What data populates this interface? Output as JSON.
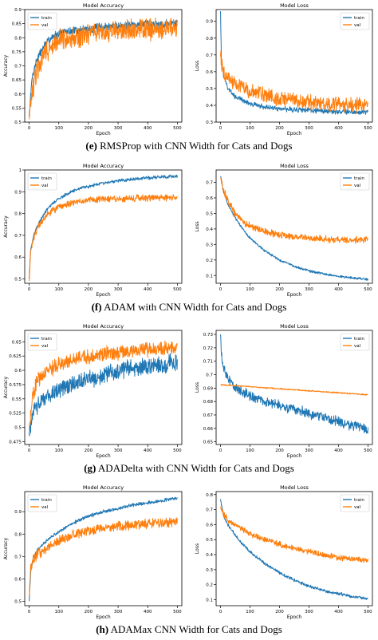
{
  "captions": [
    {
      "letter": "(e)",
      "text": " RMSProp with CNN Width for Cats and Dogs"
    },
    {
      "letter": "(f)",
      "text": " ADAM with CNN Width for Cats and Dogs"
    },
    {
      "letter": "(g)",
      "text": " ADADelta with CNN Width for Cats and Dogs"
    },
    {
      "letter": "(h)",
      "text": " ADAMax CNN Width for Cats and Dogs"
    }
  ],
  "colors": {
    "train": "#1f77b4",
    "val": "#ff7f0e"
  },
  "chart_data": [
    {
      "type": "line",
      "title": "Model Accuracy",
      "xlabel": "Epoch",
      "ylabel": "Accuracy",
      "xlim": [
        -15,
        515
      ],
      "ylim": [
        0.5,
        0.9
      ],
      "xticks": [
        0,
        100,
        200,
        300,
        400,
        500
      ],
      "yticks": [
        0.5,
        0.55,
        0.6,
        0.65,
        0.7,
        0.75,
        0.8,
        0.85,
        0.9
      ],
      "legend": "top-left",
      "series": [
        {
          "name": "train",
          "x": [
            0,
            10,
            25,
            50,
            75,
            100,
            150,
            200,
            250,
            300,
            350,
            400,
            450,
            500
          ],
          "values": [
            0.52,
            0.66,
            0.72,
            0.77,
            0.8,
            0.815,
            0.825,
            0.832,
            0.838,
            0.842,
            0.846,
            0.848,
            0.85,
            0.852
          ],
          "noise": 0.012
        },
        {
          "name": "val",
          "x": [
            0,
            10,
            25,
            50,
            75,
            100,
            150,
            200,
            250,
            300,
            350,
            400,
            450,
            500
          ],
          "values": [
            0.51,
            0.6,
            0.68,
            0.74,
            0.77,
            0.79,
            0.8,
            0.81,
            0.82,
            0.825,
            0.83,
            0.83,
            0.835,
            0.835
          ],
          "noise": 0.03
        }
      ]
    },
    {
      "type": "line",
      "title": "Model Loss",
      "xlabel": "Epoch",
      "ylabel": "Loss",
      "xlim": [
        -15,
        515
      ],
      "ylim": [
        0.3,
        0.97
      ],
      "xticks": [
        0,
        100,
        200,
        300,
        400,
        500
      ],
      "yticks": [
        0.3,
        0.4,
        0.5,
        0.6,
        0.7,
        0.8,
        0.9
      ],
      "legend": "top-right",
      "series": [
        {
          "name": "train",
          "x": [
            0,
            3,
            10,
            25,
            50,
            100,
            150,
            200,
            300,
            400,
            500
          ],
          "values": [
            0.96,
            0.66,
            0.58,
            0.5,
            0.45,
            0.41,
            0.39,
            0.38,
            0.37,
            0.362,
            0.36
          ],
          "noise": 0.012
        },
        {
          "name": "val",
          "x": [
            0,
            3,
            10,
            25,
            50,
            100,
            150,
            200,
            300,
            400,
            500
          ],
          "values": [
            0.69,
            0.65,
            0.6,
            0.56,
            0.53,
            0.48,
            0.46,
            0.44,
            0.42,
            0.41,
            0.4
          ],
          "noise": 0.035
        }
      ]
    },
    {
      "type": "line",
      "title": "Model Accuracy",
      "xlabel": "Epoch",
      "ylabel": "Accuracy",
      "xlim": [
        -15,
        515
      ],
      "ylim": [
        0.48,
        1.0
      ],
      "xticks": [
        0,
        100,
        200,
        300,
        400,
        500
      ],
      "yticks": [
        0.5,
        0.6,
        0.7,
        0.8,
        0.9,
        1.0
      ],
      "legend": "top-left",
      "series": [
        {
          "name": "train",
          "x": [
            0,
            5,
            15,
            30,
            50,
            75,
            100,
            150,
            200,
            250,
            300,
            350,
            400,
            450,
            500
          ],
          "values": [
            0.5,
            0.63,
            0.7,
            0.75,
            0.8,
            0.84,
            0.87,
            0.905,
            0.925,
            0.94,
            0.95,
            0.958,
            0.963,
            0.968,
            0.972
          ],
          "noise": 0.006
        },
        {
          "name": "val",
          "x": [
            0,
            5,
            15,
            30,
            50,
            75,
            100,
            150,
            200,
            250,
            300,
            350,
            400,
            450,
            500
          ],
          "values": [
            0.49,
            0.62,
            0.69,
            0.74,
            0.78,
            0.81,
            0.83,
            0.85,
            0.86,
            0.865,
            0.868,
            0.87,
            0.872,
            0.872,
            0.873
          ],
          "noise": 0.012
        }
      ]
    },
    {
      "type": "line",
      "title": "Model Loss",
      "xlabel": "Epoch",
      "ylabel": "Loss",
      "xlim": [
        -15,
        515
      ],
      "ylim": [
        0.05,
        0.78
      ],
      "xticks": [
        0,
        100,
        200,
        300,
        400,
        500
      ],
      "yticks": [
        0.1,
        0.2,
        0.3,
        0.4,
        0.5,
        0.6,
        0.7
      ],
      "legend": "top-right",
      "series": [
        {
          "name": "train",
          "x": [
            0,
            10,
            25,
            50,
            75,
            100,
            150,
            200,
            250,
            300,
            350,
            400,
            450,
            500
          ],
          "values": [
            0.74,
            0.64,
            0.56,
            0.47,
            0.4,
            0.34,
            0.26,
            0.2,
            0.16,
            0.13,
            0.11,
            0.095,
            0.085,
            0.075
          ],
          "noise": 0.006
        },
        {
          "name": "val",
          "x": [
            0,
            10,
            25,
            50,
            75,
            100,
            150,
            200,
            250,
            300,
            350,
            400,
            450,
            500
          ],
          "values": [
            0.73,
            0.65,
            0.58,
            0.5,
            0.45,
            0.42,
            0.38,
            0.36,
            0.35,
            0.34,
            0.335,
            0.33,
            0.33,
            0.33
          ],
          "noise": 0.018
        }
      ]
    },
    {
      "type": "line",
      "title": "Model Accuracy",
      "xlabel": "Epoch",
      "ylabel": "Accuracy",
      "xlim": [
        -15,
        515
      ],
      "ylim": [
        0.47,
        0.67
      ],
      "xticks": [
        0,
        100,
        200,
        300,
        400,
        500
      ],
      "yticks": [
        0.475,
        0.5,
        0.525,
        0.55,
        0.575,
        0.6,
        0.625,
        0.65
      ],
      "legend": "top-left",
      "series": [
        {
          "name": "train",
          "x": [
            0,
            10,
            25,
            50,
            100,
            150,
            200,
            250,
            300,
            350,
            400,
            450,
            500
          ],
          "values": [
            0.49,
            0.52,
            0.535,
            0.55,
            0.565,
            0.575,
            0.585,
            0.592,
            0.598,
            0.603,
            0.607,
            0.61,
            0.613
          ],
          "noise": 0.012
        },
        {
          "name": "val",
          "x": [
            0,
            10,
            25,
            50,
            100,
            150,
            200,
            250,
            300,
            350,
            400,
            450,
            500
          ],
          "values": [
            0.5,
            0.55,
            0.58,
            0.595,
            0.61,
            0.618,
            0.624,
            0.628,
            0.632,
            0.634,
            0.636,
            0.638,
            0.64
          ],
          "noise": 0.01
        }
      ]
    },
    {
      "type": "line",
      "title": "Model Loss",
      "xlabel": "Epoch",
      "ylabel": "Loss",
      "xlim": [
        -15,
        515
      ],
      "ylim": [
        0.648,
        0.733
      ],
      "xticks": [
        0,
        100,
        200,
        300,
        400,
        500
      ],
      "yticks": [
        0.65,
        0.66,
        0.67,
        0.68,
        0.69,
        0.7,
        0.71,
        0.72,
        0.73
      ],
      "legend": "top-right",
      "series": [
        {
          "name": "train",
          "x": [
            0,
            3,
            10,
            25,
            50,
            100,
            150,
            200,
            250,
            300,
            350,
            400,
            450,
            500
          ],
          "values": [
            0.73,
            0.715,
            0.705,
            0.697,
            0.69,
            0.684,
            0.68,
            0.677,
            0.674,
            0.671,
            0.668,
            0.665,
            0.662,
            0.659
          ],
          "noise": 0.003
        },
        {
          "name": "val",
          "x": [
            0,
            100,
            200,
            300,
            400,
            500
          ],
          "values": [
            0.6925,
            0.6911,
            0.6895,
            0.688,
            0.6865,
            0.685
          ],
          "noise": 0.0004
        }
      ]
    },
    {
      "type": "line",
      "title": "Model Accuracy",
      "xlabel": "Epoch",
      "ylabel": "Accuracy",
      "xlim": [
        -15,
        515
      ],
      "ylim": [
        0.48,
        0.99
      ],
      "xticks": [
        0,
        100,
        200,
        300,
        400,
        500
      ],
      "yticks": [
        0.5,
        0.6,
        0.7,
        0.8,
        0.9
      ],
      "legend": "top-left",
      "series": [
        {
          "name": "train",
          "x": [
            0,
            5,
            15,
            30,
            50,
            75,
            100,
            150,
            200,
            250,
            300,
            350,
            400,
            450,
            500
          ],
          "values": [
            0.5,
            0.63,
            0.7,
            0.73,
            0.76,
            0.79,
            0.81,
            0.85,
            0.88,
            0.9,
            0.915,
            0.93,
            0.94,
            0.95,
            0.96
          ],
          "noise": 0.006
        },
        {
          "name": "val",
          "x": [
            0,
            5,
            15,
            30,
            50,
            75,
            100,
            150,
            200,
            250,
            300,
            350,
            400,
            450,
            500
          ],
          "values": [
            0.52,
            0.64,
            0.69,
            0.71,
            0.73,
            0.75,
            0.77,
            0.8,
            0.815,
            0.825,
            0.835,
            0.84,
            0.845,
            0.85,
            0.855
          ],
          "noise": 0.018
        }
      ]
    },
    {
      "type": "line",
      "title": "Model Loss",
      "xlabel": "Epoch",
      "ylabel": "Loss",
      "xlim": [
        -15,
        515
      ],
      "ylim": [
        0.06,
        0.82
      ],
      "xticks": [
        0,
        100,
        200,
        300,
        400,
        500
      ],
      "yticks": [
        0.1,
        0.2,
        0.3,
        0.4,
        0.5,
        0.6,
        0.7,
        0.8
      ],
      "legend": "top-right",
      "series": [
        {
          "name": "train",
          "x": [
            0,
            10,
            25,
            50,
            75,
            100,
            150,
            200,
            250,
            300,
            350,
            400,
            450,
            500
          ],
          "values": [
            0.77,
            0.66,
            0.6,
            0.53,
            0.47,
            0.42,
            0.34,
            0.28,
            0.23,
            0.19,
            0.16,
            0.14,
            0.12,
            0.105
          ],
          "noise": 0.008
        },
        {
          "name": "val",
          "x": [
            0,
            10,
            25,
            50,
            75,
            100,
            150,
            200,
            250,
            300,
            350,
            400,
            450,
            500
          ],
          "values": [
            0.72,
            0.67,
            0.63,
            0.6,
            0.57,
            0.54,
            0.5,
            0.47,
            0.44,
            0.42,
            0.4,
            0.38,
            0.37,
            0.36
          ],
          "noise": 0.015
        }
      ]
    }
  ]
}
